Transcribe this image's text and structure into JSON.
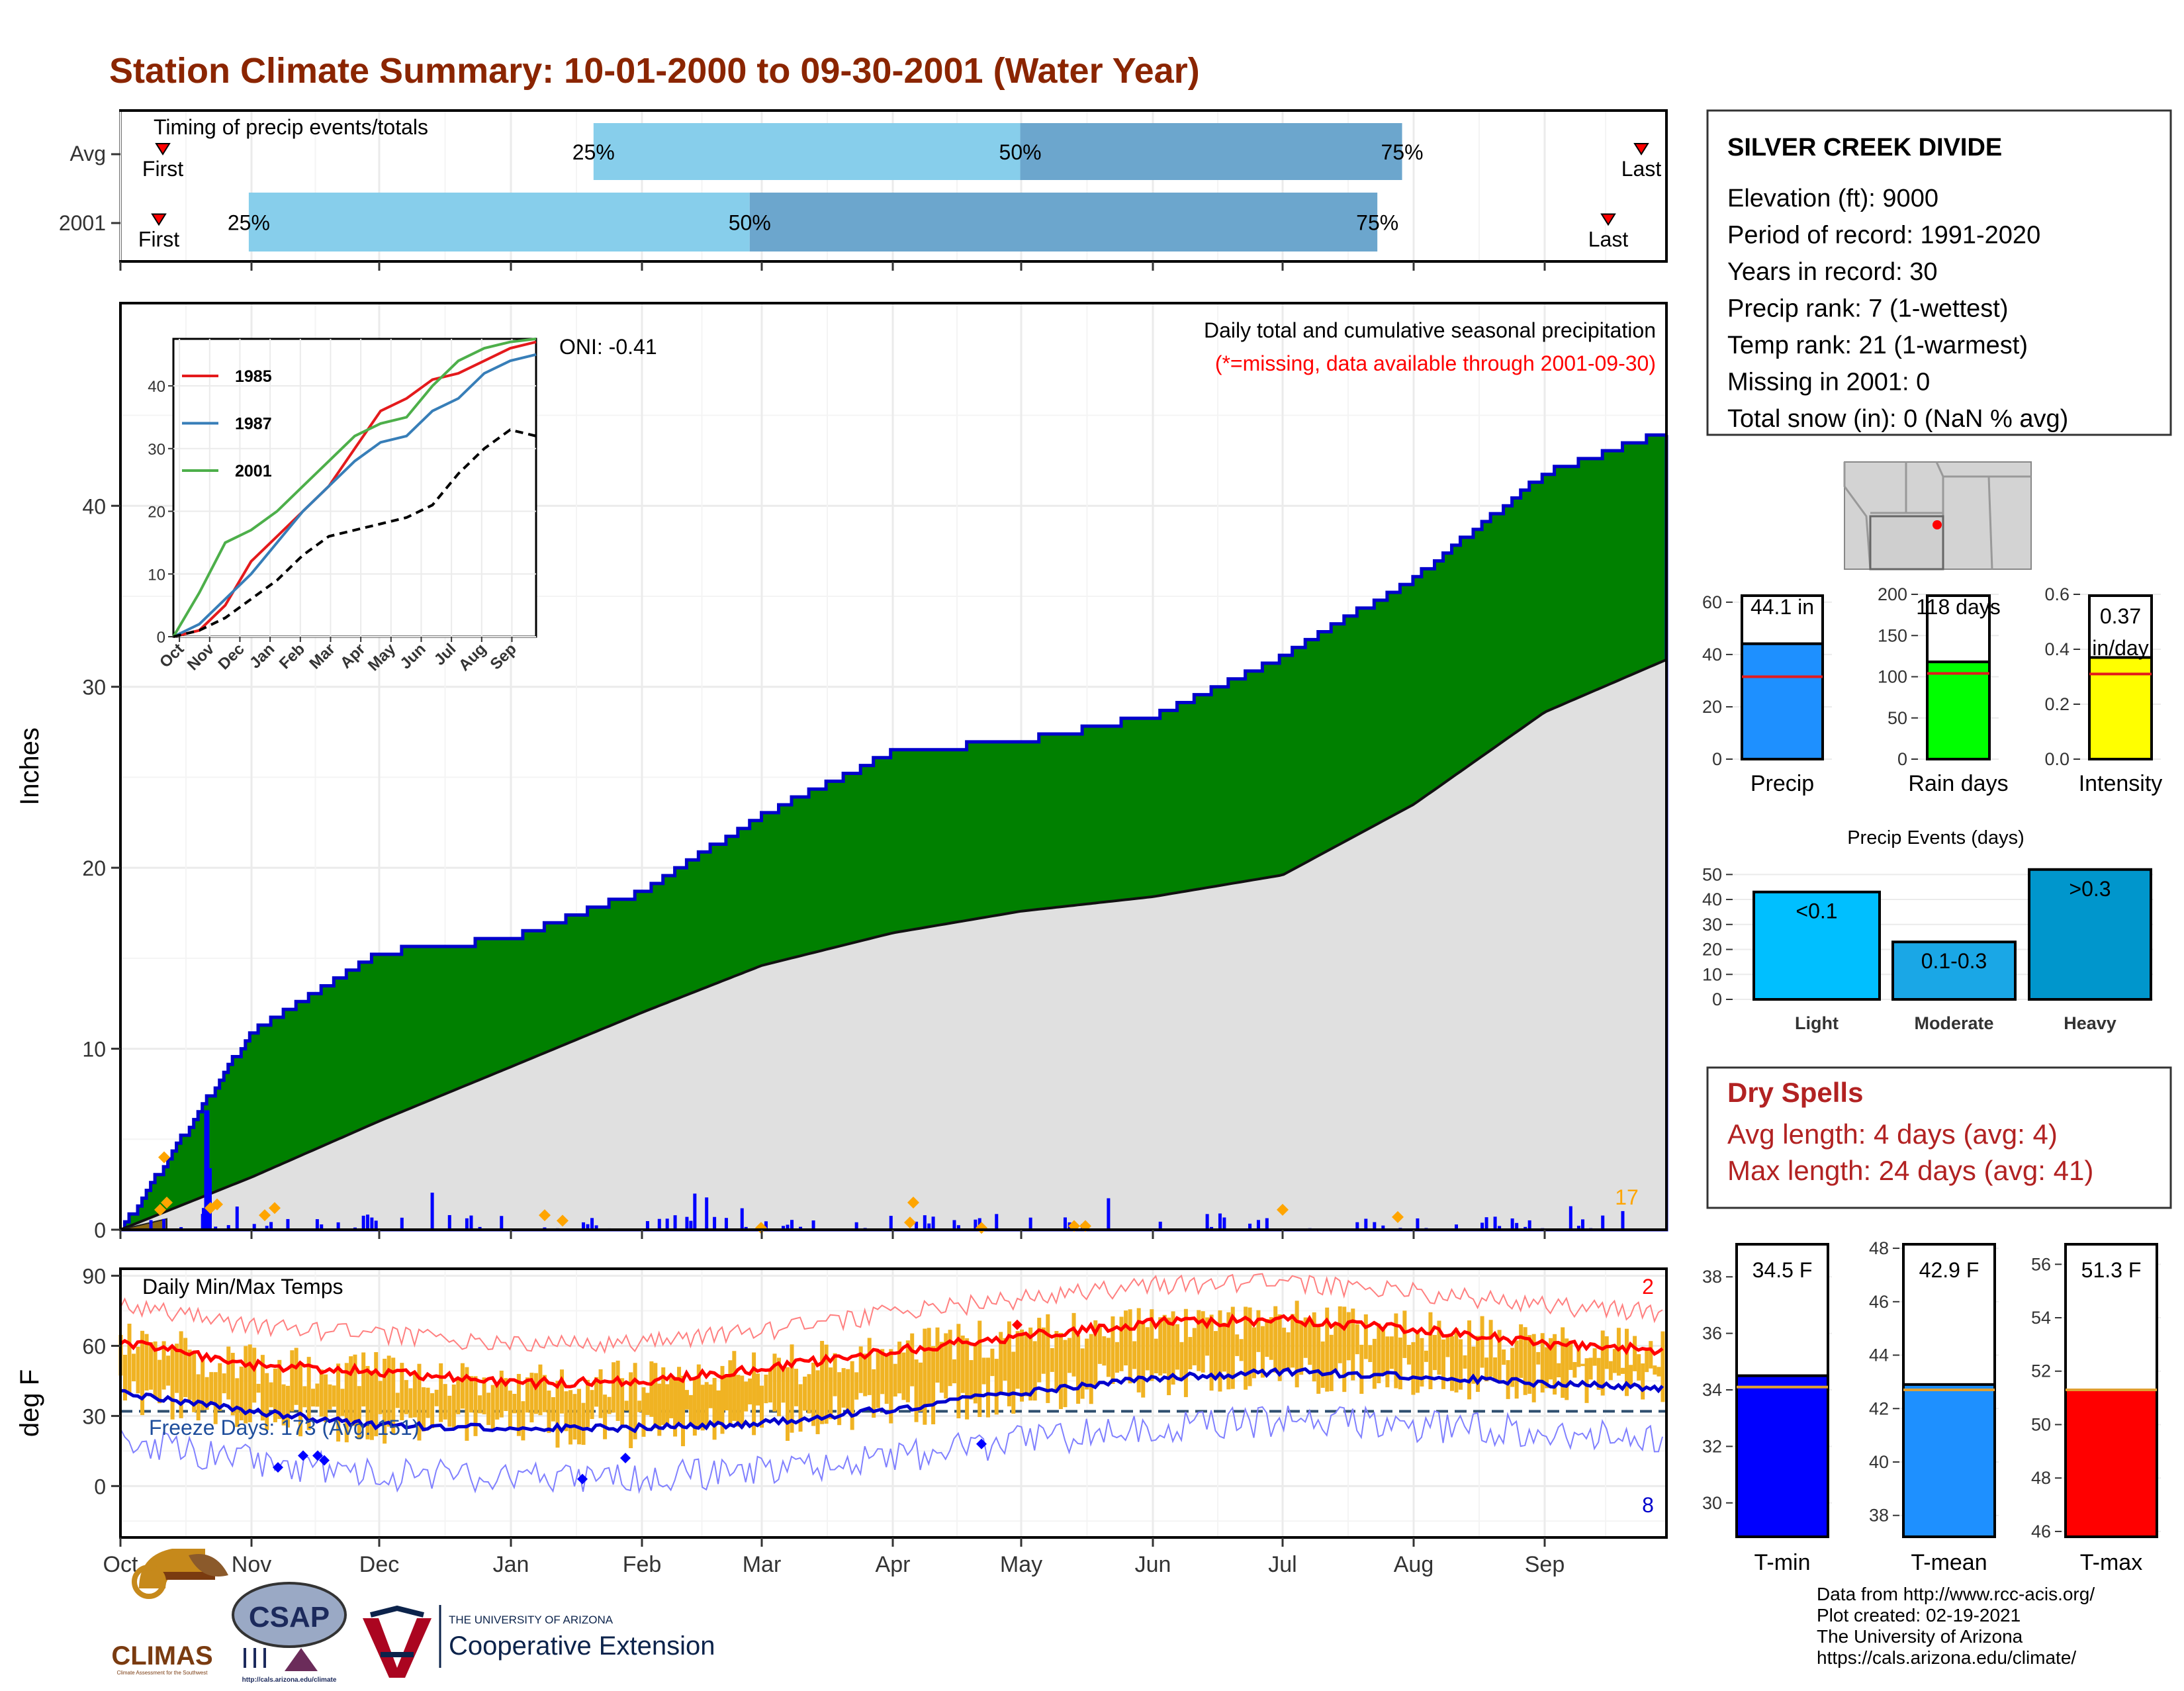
{
  "page": {
    "title": "Station Climate Summary: 10-01-2000 to 09-30-2001 (Water Year)"
  },
  "timing": {
    "title": "Timing of precip events/totals",
    "rows": [
      {
        "label": "Avg",
        "first": 0.09,
        "p25": 0.306,
        "p50": 0.582,
        "p75": 0.829,
        "last": 0.983,
        "first_label": "First",
        "last_label": "Last",
        "p25_label": "25%",
        "p50_label": "50%",
        "p75_label": "75%"
      },
      {
        "label": "2001",
        "first": 0.09,
        "p25": 0.083,
        "p50": 0.407,
        "p75": 0.813,
        "last": 0.961,
        "first_label": "First",
        "last_label": "Last",
        "p25_label": "25%",
        "p50_label": "50%",
        "p75_label": "75%"
      }
    ]
  },
  "info": {
    "station": "SILVER CREEK DIVIDE",
    "lines": [
      "Elevation (ft): 9000",
      "Period of record: 1991-2020",
      "Years in record: 30",
      "Precip rank: 7 (1-wettest)",
      "Temp rank: 21 (1-warmest)",
      "Missing in 2001: 0",
      "Total snow (in): 0 (NaN % avg)"
    ]
  },
  "precip_panel": {
    "header1": "Daily total and cumulative seasonal precipitation",
    "header2": "(*=missing, data available through 2001-09-30)",
    "oni": "ONI: -0.41",
    "ylabel": "Inches",
    "yticks": [
      "0",
      "10",
      "20",
      "30",
      "40"
    ],
    "corner_count": "17",
    "colors": {
      "cumulative": "#008000",
      "normal": "#e0e0e0",
      "daily": "#0000ff",
      "marker": "#ffa500"
    }
  },
  "temp_panel": {
    "title": "Daily Min/Max Temps",
    "ylabel": "deg F",
    "yticks": [
      "0",
      "30",
      "60",
      "90"
    ],
    "freeze": "Freeze Days: 173 (Avg: 151)",
    "count_high": "2",
    "count_low": "8"
  },
  "months": [
    "Oct",
    "Nov",
    "Dec",
    "Jan",
    "Feb",
    "Mar",
    "Apr",
    "May",
    "Jun",
    "Jul",
    "Aug",
    "Sep"
  ],
  "inset": {
    "xticks": [
      "Oct",
      "Nov",
      "Dec",
      "Jan",
      "Feb",
      "Mar",
      "Apr",
      "May",
      "Jun",
      "Jul",
      "Aug",
      "Sep"
    ],
    "yticks": [
      "0",
      "10",
      "20",
      "30",
      "40"
    ],
    "legend": [
      {
        "name": "1985",
        "color": "#e41a1c"
      },
      {
        "name": "1987",
        "color": "#377eb8"
      },
      {
        "name": "2001",
        "color": "#4daf4a"
      }
    ]
  },
  "stats_bars": [
    {
      "label": "Precip",
      "value_label": "44.1 in",
      "value": 44.1,
      "avg": 31.5,
      "ymax": 63,
      "yticks": [
        "0",
        "20",
        "40",
        "60"
      ],
      "color": "#1e90ff"
    },
    {
      "label": "Rain days",
      "value_label": "118 days",
      "value": 118,
      "avg": 104,
      "ymax": 200,
      "yticks": [
        "0",
        "50",
        "100",
        "150",
        "200"
      ],
      "color": "#00ff00"
    },
    {
      "label": "Intensity",
      "value_label": "0.37 in/day",
      "value": 0.37,
      "avg": 0.31,
      "ymax": 0.6,
      "yticks": [
        "0.0",
        "0.2",
        "0.4",
        "0.6"
      ],
      "color": "#ffff00"
    }
  ],
  "events": {
    "title": "Precip Events (days)",
    "ymax": 53,
    "yticks": [
      "0",
      "10",
      "20",
      "30",
      "40",
      "50"
    ],
    "bars": [
      {
        "name": "Light",
        "value": 43,
        "label": "<0.1",
        "color": "#00bfff"
      },
      {
        "name": "Moderate",
        "value": 23,
        "label": "0.1-0.3",
        "color": "#1aa7e6"
      },
      {
        "name": "Heavy",
        "value": 52,
        "label": ">0.3",
        "color": "#0096cc"
      }
    ]
  },
  "dry_spells": {
    "title": "Dry Spells",
    "line1": "Avg length: 4 days (avg: 4)",
    "line2": "Max length: 24 days (avg: 41)"
  },
  "temp_bars": [
    {
      "label": "T-min",
      "value_label": "34.5 F",
      "value": 34.5,
      "avg": 34.1,
      "ymin": 28.8,
      "ymax": 39.2,
      "yticks": [
        "30",
        "32",
        "34",
        "36",
        "38"
      ],
      "tickvals": [
        30,
        32,
        34,
        36,
        38
      ],
      "color": "#0000ff"
    },
    {
      "label": "T-mean",
      "value_label": "42.9 F",
      "value": 42.9,
      "avg": 42.7,
      "ymin": 37.2,
      "ymax": 48.2,
      "yticks": [
        "38",
        "40",
        "42",
        "44",
        "46",
        "48"
      ],
      "tickvals": [
        38,
        40,
        42,
        44,
        46,
        48
      ],
      "color": "#1e90ff"
    },
    {
      "label": "T-max",
      "value_label": "51.3 F",
      "value": 51.3,
      "avg": 51.3,
      "ymin": 45.8,
      "ymax": 56.8,
      "yticks": [
        "46",
        "48",
        "50",
        "52",
        "54",
        "56"
      ],
      "tickvals": [
        46,
        48,
        50,
        52,
        54,
        56
      ],
      "color": "#ff0000"
    }
  ],
  "footer": {
    "lines": [
      "Data from http://www.rcc-acis.org/",
      "Plot created: 02-19-2021",
      "The University of Arizona",
      "https://cals.arizona.edu/climate/"
    ],
    "logos": {
      "climas": "CLIMAS",
      "climas_sub": "Climate Assessment for the Southwest",
      "csap": "CSAP",
      "csap_url": "http://cals.arizona.edu/climate",
      "ua_small": "THE UNIVERSITY OF ARIZONA",
      "ua_big": "Cooperative Extension"
    }
  },
  "chart_data": [
    {
      "type": "area",
      "title": "Daily total and cumulative seasonal precipitation",
      "ylabel": "Inches",
      "ylim": [
        0,
        48
      ],
      "x": [
        "Oct",
        "Nov",
        "Dec",
        "Jan",
        "Feb",
        "Mar",
        "Apr",
        "May",
        "Jun",
        "Jul",
        "Aug",
        "Sep",
        "end"
      ],
      "series": [
        {
          "name": "2001",
          "values": [
            0,
            11,
            15.3,
            16.1,
            18.7,
            22.9,
            26.4,
            27.0,
            28.4,
            31.7,
            36.0,
            41.8,
            44.1
          ]
        },
        {
          "name": "Avg",
          "values": [
            0,
            2.9,
            6.0,
            9.0,
            12.0,
            14.6,
            16.4,
            17.6,
            18.4,
            19.6,
            23.5,
            28.6,
            31.5
          ]
        }
      ]
    },
    {
      "type": "line",
      "title": "Daily Min/Max Temps",
      "ylabel": "deg F",
      "ylim": [
        -22,
        93
      ],
      "x": [
        "Oct",
        "Nov",
        "Dec",
        "Jan",
        "Feb",
        "Mar",
        "Apr",
        "May",
        "Jun",
        "Jul",
        "Aug",
        "Sep",
        "end"
      ],
      "series": [
        {
          "name": "avg-max",
          "values": [
            62,
            52,
            49,
            44,
            45,
            50,
            58,
            64,
            70,
            71,
            67,
            61,
            58
          ]
        },
        {
          "name": "avg-min",
          "values": [
            40,
            32,
            26,
            25,
            25,
            27,
            33,
            40,
            46,
            49,
            47,
            44,
            42
          ]
        }
      ]
    }
  ]
}
